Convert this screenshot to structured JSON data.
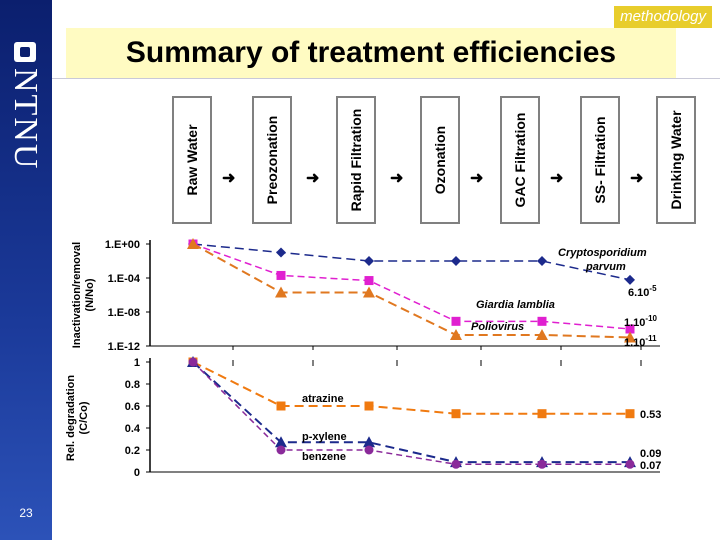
{
  "slide": {
    "title": "Summary of treatment efficiencies",
    "section": "methodology",
    "page_number": "23",
    "logo_text": "NTNU"
  },
  "stages": [
    "Raw Water",
    "Preozonation",
    "Rapid Filtration",
    "Ozonation",
    "GAC Filtration",
    "SS- Filtration",
    "Drinking Water"
  ],
  "colors": {
    "sidebar": "#0b1f6e",
    "title_bg": "#fffbc2",
    "section_tag": "#e8cd2c",
    "crypto": "#1c2a8c",
    "giardia": "#e020d0",
    "polio": "#e07820",
    "atrazine": "#f07a10",
    "pxylene": "#1c2a8c",
    "benzene": "#8a2a9a"
  },
  "chart_data": [
    {
      "type": "line",
      "ylabel": "Inactivation/removal (N/No)",
      "yscale": "log",
      "ylim": [
        1e-12,
        1
      ],
      "ytick_labels": [
        "1.E+00",
        "1.E-04",
        "1.E-08",
        "1.E-12"
      ],
      "x": [
        "Raw Water",
        "Preozonation",
        "Rapid Filtration",
        "Ozonation",
        "GAC Filtration",
        "SS- Filtration"
      ],
      "series": [
        {
          "name": "Cryptosporidium parvum",
          "values": [
            1,
            0.1,
            0.01,
            0.01,
            0.01,
            6e-05
          ],
          "end_label": "6.10-5"
        },
        {
          "name": "Giardia lamblia",
          "values": [
            1,
            0.0002,
            5e-05,
            8e-10,
            8e-10,
            1e-10
          ],
          "end_label": "1.10-10"
        },
        {
          "name": "Poliovirus",
          "values": [
            1,
            2e-06,
            2e-06,
            2e-11,
            2e-11,
            1e-11
          ],
          "end_label": "1.10-11"
        }
      ]
    },
    {
      "type": "line",
      "ylabel": "Rel. degradation (C/Co)",
      "ylim": [
        0,
        1
      ],
      "ytick_labels": [
        "1",
        "0.8",
        "0.6",
        "0.4",
        "0.2",
        "0"
      ],
      "x": [
        "Raw Water",
        "Preozonation",
        "Rapid Filtration",
        "Ozonation",
        "GAC Filtration",
        "SS- Filtration"
      ],
      "series": [
        {
          "name": "atrazine",
          "values": [
            1,
            0.6,
            0.6,
            0.53,
            0.53,
            0.53
          ],
          "end_label": "0.53"
        },
        {
          "name": "p-xylene",
          "values": [
            1,
            0.27,
            0.27,
            0.09,
            0.09,
            0.09
          ],
          "end_label": "0.09"
        },
        {
          "name": "benzene",
          "values": [
            1,
            0.2,
            0.2,
            0.07,
            0.07,
            0.07
          ],
          "end_label": "0.07"
        }
      ]
    }
  ]
}
